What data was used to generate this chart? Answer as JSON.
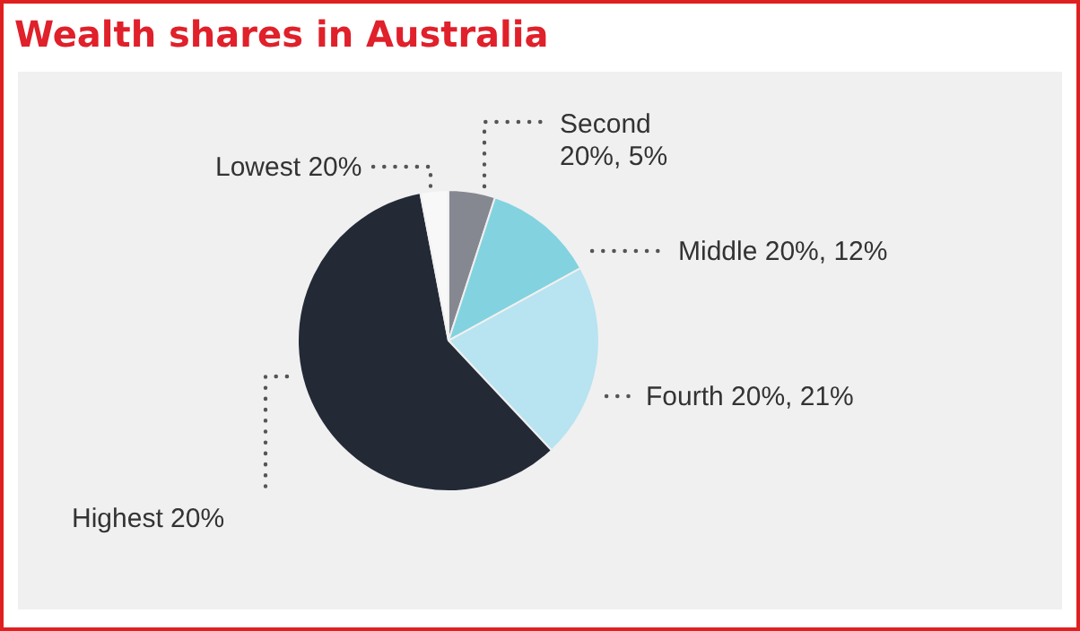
{
  "chart_data": {
    "type": "pie",
    "title": "Wealth shares in Australia",
    "categories": [
      "Second 20%",
      "Middle 20%",
      "Fourth 20%",
      "Highest 20%",
      "Lowest 20%"
    ],
    "values": [
      5,
      12,
      21,
      59,
      3
    ],
    "value_labels": [
      "5%",
      "12%",
      "21%",
      null,
      null
    ],
    "colors": [
      "#868891",
      "#82d3df",
      "#b8e3f0",
      "#232a36",
      "#f8f8f8"
    ]
  }
}
